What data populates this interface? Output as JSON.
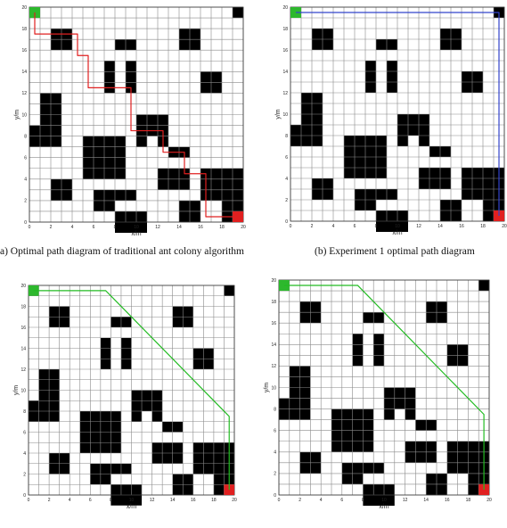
{
  "figure": {
    "captions": {
      "a": "a) Optimal path diagram of traditional ant colony algorithm",
      "b": "(b) Experiment 1 optimal path diagram"
    },
    "shared_axes": {
      "xlabel": "x/m",
      "ylabel": "y/m",
      "xlim": [
        0,
        20
      ],
      "ylim": [
        0,
        20
      ],
      "ticks": [
        0,
        2,
        4,
        6,
        8,
        10,
        12,
        14,
        16,
        18,
        20
      ],
      "grid_cell_size": 1,
      "grid": true
    },
    "obstacles": [
      [
        2,
        18,
        2,
        2
      ],
      [
        1,
        12,
        2,
        3
      ],
      [
        0,
        9,
        3,
        2
      ],
      [
        2,
        4,
        2,
        2
      ],
      [
        7,
        15,
        1,
        3
      ],
      [
        8,
        17,
        2,
        1
      ],
      [
        9,
        15,
        1,
        3
      ],
      [
        5,
        8,
        4,
        4
      ],
      [
        10,
        10,
        1,
        3
      ],
      [
        11,
        10,
        1,
        1
      ],
      [
        12,
        10,
        1,
        3
      ],
      [
        10,
        9,
        3,
        1
      ],
      [
        14,
        18,
        2,
        2
      ],
      [
        16,
        14,
        2,
        2
      ],
      [
        19,
        20,
        1,
        1
      ],
      [
        12,
        5,
        3,
        2
      ],
      [
        13,
        7,
        2,
        1
      ],
      [
        16,
        5,
        4,
        3
      ],
      [
        6,
        3,
        2,
        2
      ],
      [
        8,
        3,
        2,
        1
      ],
      [
        8,
        1,
        3,
        2
      ],
      [
        14,
        2,
        2,
        2
      ],
      [
        18,
        2,
        2,
        2
      ]
    ],
    "start_cell": {
      "x": 0,
      "y": 19,
      "color": "#2db82d"
    },
    "goal_cell": {
      "x": 19,
      "y": 0,
      "color": "#e02020"
    },
    "panels": [
      {
        "id": "a",
        "path_color": "#e02020",
        "path": [
          [
            0.5,
            19.5
          ],
          [
            0.5,
            17.5
          ],
          [
            4.5,
            17.5
          ],
          [
            4.5,
            15.5
          ],
          [
            5.5,
            15.5
          ],
          [
            5.5,
            12.5
          ],
          [
            9.5,
            12.5
          ],
          [
            9.5,
            8.5
          ],
          [
            12.5,
            8.5
          ],
          [
            12.5,
            6.5
          ],
          [
            14.5,
            6.5
          ],
          [
            14.5,
            4.5
          ],
          [
            16.5,
            4.5
          ],
          [
            16.5,
            0.5
          ],
          [
            19.5,
            0.5
          ]
        ]
      },
      {
        "id": "b",
        "path_color": "#3344cc",
        "path": [
          [
            0.5,
            19.5
          ],
          [
            19.5,
            19.5
          ],
          [
            19.5,
            0.5
          ]
        ]
      },
      {
        "id": "c",
        "path_color": "#22bb22",
        "path": [
          [
            0.5,
            19.5
          ],
          [
            7.5,
            19.5
          ],
          [
            19.5,
            7.5
          ],
          [
            19.5,
            0.5
          ]
        ]
      },
      {
        "id": "d",
        "path_color": "#22bb22",
        "path": [
          [
            0.5,
            19.5
          ],
          [
            7.5,
            19.5
          ],
          [
            19.5,
            7.5
          ],
          [
            19.5,
            0.5
          ]
        ]
      }
    ]
  }
}
